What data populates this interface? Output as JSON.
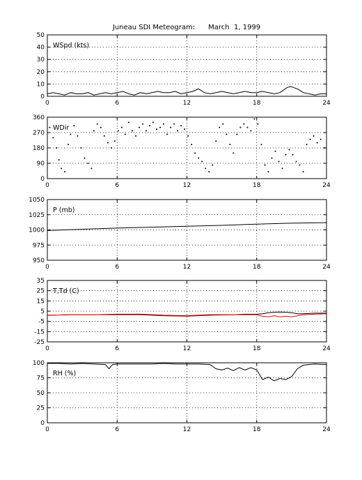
{
  "chart_data": {
    "type": "line",
    "title": "Juneau SDI Meteogram:      March  1, 1999",
    "x_ticks": [
      "0",
      "6",
      "12",
      "18",
      "24"
    ],
    "xlim": [
      0,
      24
    ],
    "grid": true,
    "panels": [
      {
        "label": "WSpd (kts)",
        "style": "line",
        "ylim": [
          0,
          50
        ],
        "y_ticks": [
          "0",
          "10",
          "20",
          "30",
          "40",
          "50"
        ],
        "series": [
          {
            "color": "#000000",
            "x": [
              0,
              0.5,
              1,
              1.5,
              2,
              2.5,
              3,
              3.5,
              4,
              4.5,
              5,
              5.5,
              6,
              6.5,
              7,
              7.5,
              8,
              8.5,
              9,
              9.5,
              10,
              10.5,
              11,
              11.5,
              12,
              12.5,
              13,
              13.5,
              14,
              14.5,
              15,
              15.5,
              16,
              16.5,
              17,
              17.5,
              18,
              18.5,
              19,
              19.5,
              20,
              20.3,
              20.6,
              20.9,
              21.2,
              21.5,
              22,
              22.5,
              23,
              23.5,
              24
            ],
            "y": [
              2,
              3,
              2,
              1,
              3,
              2,
              2,
              3,
              1,
              2,
              3,
              2,
              3,
              4,
              2,
              1,
              3,
              2,
              3,
              4,
              3,
              3,
              4,
              2,
              3,
              4,
              6,
              3,
              2,
              3,
              4,
              3,
              2,
              3,
              4,
              3,
              3,
              4,
              3,
              2,
              3,
              5,
              7,
              8,
              7,
              6,
              3,
              2,
              1,
              2,
              2
            ]
          }
        ]
      },
      {
        "label": "WDir",
        "style": "dots",
        "ylim": [
          0,
          360
        ],
        "y_ticks": [
          "0",
          "90",
          "180",
          "270",
          "360"
        ],
        "series": [
          {
            "color": "#000000",
            "x": [
              0.2,
              0.5,
              0.8,
              1.0,
              1.2,
              1.5,
              1.8,
              2.0,
              2.3,
              2.6,
              2.9,
              3.2,
              3.5,
              3.8,
              4.0,
              4.3,
              4.6,
              4.9,
              5.2,
              5.5,
              5.8,
              6.1,
              6.4,
              6.7,
              7.0,
              7.3,
              7.6,
              7.9,
              8.2,
              8.5,
              8.8,
              9.1,
              9.4,
              9.7,
              10.0,
              10.3,
              10.6,
              10.9,
              11.2,
              11.5,
              11.8,
              12.1,
              12.4,
              12.7,
              13.0,
              13.3,
              13.6,
              13.9,
              14.2,
              14.5,
              14.8,
              15.1,
              15.4,
              15.7,
              16.0,
              16.3,
              16.6,
              16.9,
              17.2,
              17.5,
              17.8,
              18.1,
              18.4,
              18.7,
              19.0,
              19.3,
              19.6,
              19.9,
              20.2,
              20.5,
              20.8,
              21.1,
              21.4,
              21.7,
              22.0,
              22.3,
              22.6,
              22.9,
              23.2,
              23.5,
              23.8
            ],
            "y": [
              300,
              240,
              180,
              110,
              60,
              40,
              200,
              260,
              310,
              250,
              180,
              120,
              90,
              60,
              280,
              320,
              300,
              250,
              210,
              180,
              220,
              280,
              300,
              260,
              330,
              280,
              250,
              300,
              320,
              280,
              310,
              330,
              290,
              300,
              320,
              260,
              300,
              320,
              280,
              310,
              290,
              250,
              200,
              150,
              120,
              100,
              60,
              40,
              80,
              220,
              300,
              320,
              260,
              200,
              150,
              260,
              300,
              320,
              300,
              280,
              350,
              320,
              200,
              80,
              40,
              120,
              160,
              100,
              60,
              140,
              170,
              140,
              100,
              80,
              40,
              200,
              230,
              250,
              210,
              230,
              180
            ]
          }
        ]
      },
      {
        "label": "P (mb)",
        "style": "line",
        "ylim": [
          950,
          1050
        ],
        "y_ticks": [
          "950",
          "975",
          "1000",
          "1025",
          "1050"
        ],
        "series": [
          {
            "color": "#000000",
            "x": [
              0,
              3,
              6,
              9,
              12,
              15,
              18,
              21,
              24
            ],
            "y": [
              999,
              1001,
              1003,
              1004.5,
              1006,
              1007.5,
              1009.5,
              1011,
              1012
            ]
          }
        ]
      },
      {
        "label": "T,Td (C)",
        "style": "line",
        "ylim": [
          -25,
          35
        ],
        "y_ticks": [
          "-25",
          "-15",
          "-5",
          "5",
          "15",
          "25",
          "35"
        ],
        "series": [
          {
            "color": "#000000",
            "x": [
              0,
              2,
              4,
              6,
              8,
              10,
              12,
              14,
              16,
              17,
              18,
              18.5,
              19,
              19.5,
              20,
              20.5,
              21,
              21.5,
              22,
              23,
              24
            ],
            "y": [
              1,
              1.5,
              1.5,
              2,
              2,
              1,
              0.5,
              1.5,
              1.5,
              2,
              2,
              2.5,
              3.5,
              4,
              4.2,
              4,
              3.5,
              2.5,
              2.5,
              3,
              3
            ]
          },
          {
            "color": "#ff0000",
            "x": [
              0,
              2,
              4,
              6,
              8,
              10,
              12,
              14,
              16,
              17,
              18,
              18.5,
              19,
              19.5,
              20,
              20.5,
              21,
              21.5,
              22,
              23,
              24
            ],
            "y": [
              1,
              1.5,
              1.5,
              1.5,
              1.5,
              0.5,
              0,
              1,
              1.5,
              1.5,
              1.5,
              0,
              -0.5,
              0.5,
              -0.5,
              0,
              -0.5,
              0.5,
              1.5,
              2,
              2.5
            ]
          }
        ]
      },
      {
        "label": "RH (%)",
        "style": "line",
        "ylim": [
          0,
          100
        ],
        "y_ticks": [
          "0",
          "25",
          "50",
          "75",
          "100"
        ],
        "series": [
          {
            "color": "#000000",
            "x": [
              0,
              1,
              2,
              3,
              4,
              5,
              5.3,
              5.6,
              6,
              7,
              8,
              9,
              10,
              11,
              12,
              13,
              14,
              14.5,
              15,
              15.5,
              16,
              16.5,
              17,
              17.5,
              18,
              18.5,
              19,
              19.5,
              20,
              20.5,
              21,
              21.5,
              22,
              23,
              24
            ],
            "y": [
              99,
              99,
              98,
              99,
              98,
              97,
              90,
              97,
              98,
              98,
              98,
              98,
              99,
              98,
              98,
              98,
              97,
              90,
              88,
              91,
              87,
              92,
              88,
              92,
              88,
              72,
              76,
              70,
              74,
              72,
              77,
              90,
              96,
              98,
              97
            ]
          }
        ]
      }
    ]
  }
}
